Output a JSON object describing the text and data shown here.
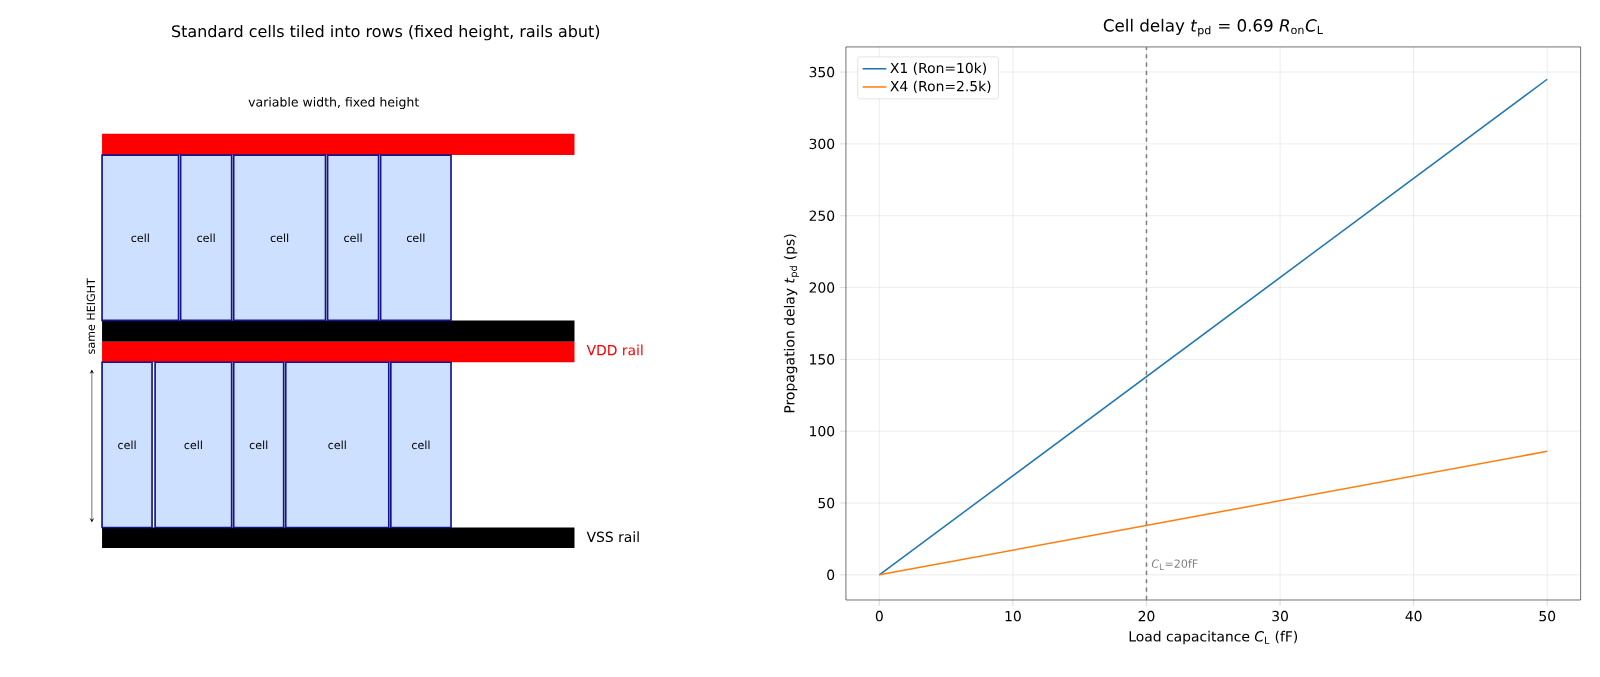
{
  "chart_data": [
    {
      "type": "other",
      "title": "Standard cells tiled into rows (fixed height, rails abut)",
      "annotations": [
        "variable width, fixed height",
        "cell",
        "cell",
        "cell",
        "cell",
        "cell",
        "cell",
        "cell",
        "cell",
        "cell",
        "cell",
        "VDD rail",
        "VSS rail",
        "same HEIGHT"
      ]
    },
    {
      "type": "line",
      "title": "Cell delay *t*$_{pd}$ = 0.69 *R*$_{on}$*C*$_{L}$",
      "xlabel": "Load capacitance *C*$_{L}$ (fF)",
      "ylabel": "Propagation delay *t*$_{pd}$ (ps)",
      "x": [
        0,
        50
      ],
      "series": [
        {
          "name": "X1 (Ron=10k)",
          "color": "#1f77b4",
          "values": [
            0,
            345
          ]
        },
        {
          "name": "X4 (Ron=2.5k)",
          "color": "#ff7f0e",
          "values": [
            0,
            86
          ]
        }
      ],
      "xlim": [
        -2.5,
        52.5
      ],
      "ylim": [
        -17.5,
        367.5
      ],
      "xticks": [
        0,
        10,
        20,
        30,
        40,
        50
      ],
      "yticks": [
        0,
        50,
        100,
        150,
        200,
        250,
        300,
        350
      ],
      "ref_lines": [
        {
          "axis": "x",
          "value": 20,
          "label": "*C*$_{L}$=20fF",
          "color": "#808080",
          "line_style": "dashed"
        }
      ],
      "grid": true,
      "legend": "top left",
      "marker": "none",
      "line_style": "solid"
    }
  ]
}
